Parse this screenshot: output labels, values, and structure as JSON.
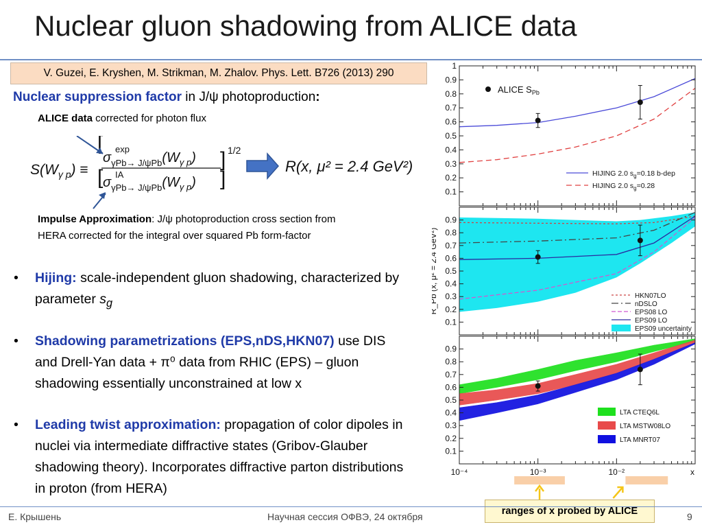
{
  "slide": {
    "title": "Nuclear gluon shadowing from ALICE data",
    "reference": "V. Guzei, E. Kryshen, M. Strikman, M. Zhalov. Phys. Lett. B726 (2013) 290",
    "suppression": {
      "label": "Nuclear suppression factor",
      "rest": " in J/ψ photoproduction",
      "colon": ":"
    },
    "alice_note": {
      "bold": "ALICE data",
      "rest": " corrected for photon flux"
    },
    "formula_result": "R(x, μ² = 2.4 GeV²)",
    "impulse": {
      "bold": "Impulse Approximation",
      "rest": ": J/ψ photoproduction cross section from HERA corrected for the integral over squared Pb form-factor"
    },
    "bullets": [
      {
        "head": "Hijing:",
        "text": " scale-independent  gluon shadowing, characterized by parameter ",
        "tail_var": "s",
        "tail_sub": "g"
      },
      {
        "head": "Shadowing parametrizations (EPS,nDS,HKN07)",
        "text": " use DIS and Drell-Yan data + π⁰ data from RHIC (EPS) – gluon shadowing essentially unconstrained at low x"
      },
      {
        "head": "Leading twist approximation:",
        "text": " propagation of color dipoles in nuclei via intermediate diffractive states (Gribov-Glauber shadowing theory). Incorporates diffractive parton distributions in proton (from HERA)"
      }
    ],
    "ranges_note": "ranges of x probed by ALICE",
    "footer": {
      "author": "Е. Крышень",
      "session": "Научная сессия ОФВЭ, 24 октября",
      "page": "9"
    }
  },
  "chart_data": [
    {
      "type": "line",
      "panel": "top",
      "x_scale": "log",
      "xlim": [
        0.0001,
        0.1
      ],
      "ylim": [
        0.0,
        1.0
      ],
      "yticks": [
        "0.1",
        "0.2",
        "0.3",
        "0.4",
        "0.5",
        "0.6",
        "0.7",
        "0.8",
        "0.9",
        "1"
      ],
      "points_label": "ALICE S",
      "points_label_sub": "Pb",
      "points": [
        {
          "x": 0.001,
          "y": 0.61,
          "yerr": 0.05
        },
        {
          "x": 0.02,
          "y": 0.74,
          "yerr": 0.12
        }
      ],
      "series": [
        {
          "name": "HIJING 2.0 s",
          "name_sub": "g",
          "name_tail": "=0.18 b-dep",
          "color": "#4a4ad8",
          "dash": "none",
          "x": [
            0.0001,
            0.0003,
            0.001,
            0.003,
            0.01,
            0.03,
            0.1
          ],
          "values": [
            0.565,
            0.575,
            0.595,
            0.64,
            0.7,
            0.78,
            0.91
          ]
        },
        {
          "name": "HIJING 2.0 s",
          "name_sub": "g",
          "name_tail": "=0.28",
          "color": "#e04040",
          "dash": "8,5",
          "x": [
            0.0001,
            0.0003,
            0.001,
            0.003,
            0.01,
            0.03,
            0.1
          ],
          "values": [
            0.31,
            0.33,
            0.37,
            0.42,
            0.5,
            0.62,
            0.84
          ]
        }
      ]
    },
    {
      "type": "line",
      "panel": "middle",
      "x_scale": "log",
      "xlim": [
        0.0001,
        0.1
      ],
      "ylim": [
        0.0,
        1.0
      ],
      "yticks": [
        "0.1",
        "0.2",
        "0.3",
        "0.4",
        "0.5",
        "0.6",
        "0.7",
        "0.8",
        "0.9"
      ],
      "ylabel": "R_Pb (x, μ² = 2.4 GeV²)",
      "points": [
        {
          "x": 0.001,
          "y": 0.61,
          "yerr": 0.05
        },
        {
          "x": 0.02,
          "y": 0.74,
          "yerr": 0.12
        }
      ],
      "band": {
        "name": "EPS09 uncertainty",
        "color": "#1ee6f0",
        "x": [
          0.0001,
          0.0003,
          0.001,
          0.003,
          0.01,
          0.02,
          0.05,
          0.1
        ],
        "lower": [
          0.18,
          0.21,
          0.26,
          0.33,
          0.45,
          0.56,
          0.72,
          0.85
        ],
        "upper": [
          0.92,
          0.915,
          0.91,
          0.9,
          0.89,
          0.9,
          0.93,
          0.96
        ]
      },
      "series": [
        {
          "name": "HKN07LO",
          "color": "#cc4444",
          "dash": "3,3",
          "x": [
            0.0001,
            0.001,
            0.01,
            0.03,
            0.1
          ],
          "values": [
            0.88,
            0.875,
            0.87,
            0.88,
            0.93
          ]
        },
        {
          "name": "nDSLO",
          "color": "#444444",
          "dash": "10,4,2,4",
          "x": [
            0.0001,
            0.001,
            0.01,
            0.03,
            0.1
          ],
          "values": [
            0.72,
            0.735,
            0.76,
            0.82,
            0.96
          ]
        },
        {
          "name": "EPS08 LO",
          "color": "#d058d0",
          "dash": "6,3",
          "x": [
            0.0001,
            0.001,
            0.01,
            0.03,
            0.1
          ],
          "values": [
            0.28,
            0.35,
            0.48,
            0.65,
            0.92
          ]
        },
        {
          "name": "EPS09 LO",
          "color": "#2a2aa0",
          "dash": "none",
          "x": [
            0.0001,
            0.001,
            0.01,
            0.03,
            0.1
          ],
          "values": [
            0.59,
            0.6,
            0.63,
            0.72,
            0.93
          ]
        }
      ]
    },
    {
      "type": "area",
      "panel": "bottom",
      "x_scale": "log",
      "xlim": [
        0.0001,
        0.1
      ],
      "ylim": [
        0.0,
        1.0
      ],
      "xticks": [
        "10⁻⁴",
        "10⁻³",
        "10⁻²",
        "x"
      ],
      "yticks": [
        "0.1",
        "0.2",
        "0.3",
        "0.4",
        "0.5",
        "0.6",
        "0.7",
        "0.8",
        "0.9"
      ],
      "points": [
        {
          "x": 0.001,
          "y": 0.61,
          "yerr": 0.04
        },
        {
          "x": 0.02,
          "y": 0.74,
          "yerr": 0.12
        }
      ],
      "bands": [
        {
          "name": "LTA CTEQ6L",
          "color": "#1ee01e",
          "x": [
            0.0001,
            0.0003,
            0.001,
            0.003,
            0.01,
            0.03,
            0.1
          ],
          "lower": [
            0.55,
            0.6,
            0.66,
            0.73,
            0.8,
            0.88,
            0.96
          ],
          "upper": [
            0.62,
            0.67,
            0.74,
            0.81,
            0.87,
            0.93,
            0.98
          ]
        },
        {
          "name": "LTA MSTW08LO",
          "color": "#e84a4a",
          "x": [
            0.0001,
            0.0003,
            0.001,
            0.003,
            0.01,
            0.03,
            0.1
          ],
          "lower": [
            0.46,
            0.5,
            0.55,
            0.62,
            0.71,
            0.82,
            0.95
          ],
          "upper": [
            0.55,
            0.58,
            0.63,
            0.7,
            0.78,
            0.87,
            0.97
          ]
        },
        {
          "name": "LTA MNRT07",
          "color": "#1010e0",
          "x": [
            0.0001,
            0.0003,
            0.001,
            0.003,
            0.01,
            0.03,
            0.1
          ],
          "lower": [
            0.34,
            0.4,
            0.47,
            0.56,
            0.66,
            0.78,
            0.94
          ],
          "upper": [
            0.44,
            0.48,
            0.54,
            0.62,
            0.71,
            0.82,
            0.95
          ]
        }
      ]
    }
  ],
  "x_ranges": [
    {
      "from": 0.0005,
      "to": 0.0022
    },
    {
      "from": 0.013,
      "to": 0.045
    }
  ],
  "colors": {
    "title_rule": "#6f8fc5",
    "ref_box": "#fbdcc2",
    "blue_text": "#1f3aa8",
    "range_bar": "#f9cfa8",
    "arrow": "#f5c518",
    "formula_arrow": "#4472c4"
  }
}
